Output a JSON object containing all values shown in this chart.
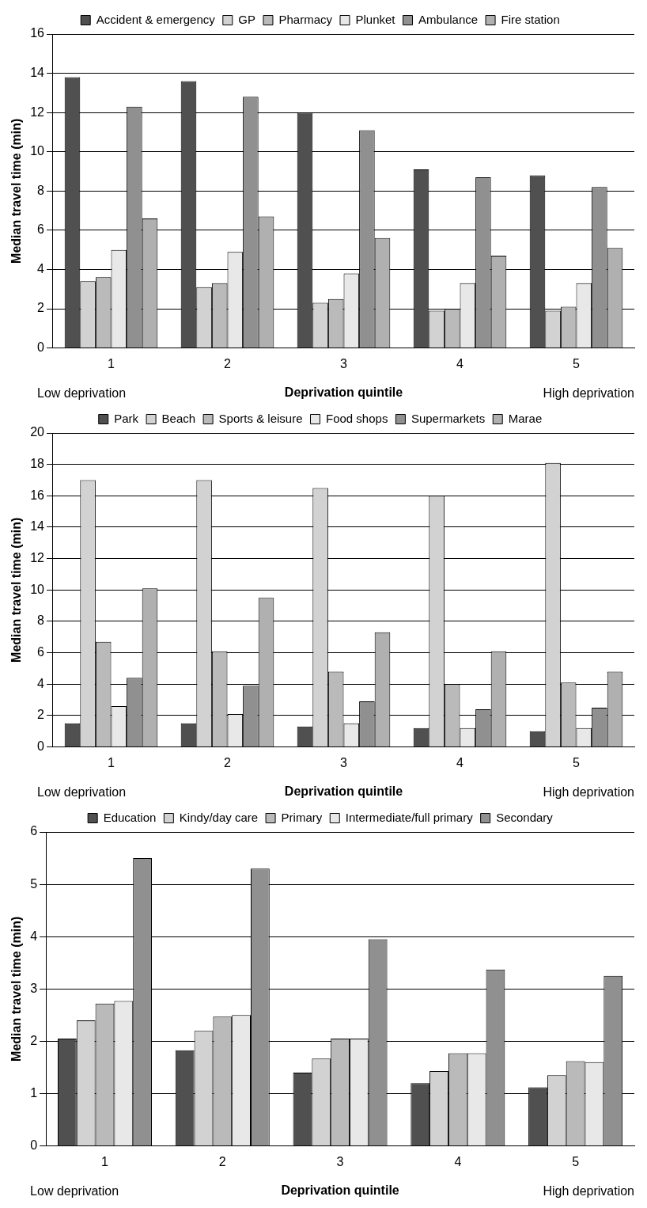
{
  "chart_data": [
    {
      "type": "bar",
      "xlabel": "Deprivation quintile",
      "ylabel": "Median travel time (min)",
      "categories": [
        "1",
        "2",
        "3",
        "4",
        "5"
      ],
      "ylim": [
        0,
        16
      ],
      "yticks": [
        0,
        2,
        4,
        6,
        8,
        10,
        12,
        14,
        16
      ],
      "grid": "y",
      "legend": "top",
      "annotations": [
        "Low deprivation",
        "High deprivation"
      ],
      "series": [
        {
          "name": "Accident & emergency",
          "color": "#505050",
          "values": [
            13.8,
            13.6,
            12.0,
            9.1,
            8.8
          ]
        },
        {
          "name": "GP",
          "color": "#d2d2d2",
          "values": [
            3.4,
            3.1,
            2.3,
            1.9,
            1.9
          ]
        },
        {
          "name": "Pharmacy",
          "color": "#bababa",
          "values": [
            3.6,
            3.3,
            2.5,
            2.0,
            2.1
          ]
        },
        {
          "name": "Plunket",
          "color": "#e8e8e8",
          "values": [
            5.0,
            4.9,
            3.8,
            3.3,
            3.3
          ]
        },
        {
          "name": "Ambulance",
          "color": "#909090",
          "values": [
            12.3,
            12.8,
            11.1,
            8.7,
            8.2
          ]
        },
        {
          "name": "Fire station",
          "color": "#b0b0b0",
          "values": [
            6.6,
            6.7,
            5.6,
            4.7,
            5.1
          ]
        }
      ]
    },
    {
      "type": "bar",
      "xlabel": "Deprivation quintile",
      "ylabel": "Median travel time (min)",
      "categories": [
        "1",
        "2",
        "3",
        "4",
        "5"
      ],
      "ylim": [
        0,
        20
      ],
      "yticks": [
        0,
        2,
        4,
        6,
        8,
        10,
        12,
        14,
        16,
        18,
        20
      ],
      "grid": "y",
      "legend": "top",
      "annotations": [
        "Low deprivation",
        "High deprivation"
      ],
      "series": [
        {
          "name": "Park",
          "color": "#505050",
          "values": [
            1.5,
            1.5,
            1.3,
            1.2,
            1.0
          ]
        },
        {
          "name": "Beach",
          "color": "#d2d2d2",
          "values": [
            17.0,
            17.0,
            16.5,
            16.0,
            18.1
          ]
        },
        {
          "name": "Sports & leisure",
          "color": "#bababa",
          "values": [
            6.7,
            6.1,
            4.8,
            4.0,
            4.1
          ]
        },
        {
          "name": "Food shops",
          "color": "#e8e8e8",
          "values": [
            2.6,
            2.1,
            1.5,
            1.2,
            1.2
          ]
        },
        {
          "name": "Supermarkets",
          "color": "#909090",
          "values": [
            4.4,
            3.9,
            2.9,
            2.4,
            2.5
          ]
        },
        {
          "name": "Marae",
          "color": "#b0b0b0",
          "values": [
            10.1,
            9.5,
            7.3,
            6.1,
            4.8
          ]
        }
      ]
    },
    {
      "type": "bar",
      "xlabel": "Deprivation quintile",
      "ylabel": "Median travel time (min)",
      "categories": [
        "1",
        "2",
        "3",
        "4",
        "5"
      ],
      "ylim": [
        0,
        6
      ],
      "yticks": [
        0,
        1,
        2,
        3,
        4,
        5,
        6
      ],
      "grid": "y",
      "legend": "top",
      "annotations": [
        "Low deprivation",
        "High deprivation"
      ],
      "series": [
        {
          "name": "Education",
          "color": "#505050",
          "values": [
            2.05,
            1.83,
            1.4,
            1.2,
            1.12
          ]
        },
        {
          "name": "Kindy/day care",
          "color": "#d2d2d2",
          "values": [
            2.4,
            2.2,
            1.67,
            1.43,
            1.35
          ]
        },
        {
          "name": "Primary",
          "color": "#bababa",
          "values": [
            2.72,
            2.47,
            2.05,
            1.77,
            1.62
          ]
        },
        {
          "name": "Intermediate/full primary",
          "color": "#e8e8e8",
          "values": [
            2.77,
            2.5,
            2.05,
            1.77,
            1.6
          ]
        },
        {
          "name": "Secondary",
          "color": "#909090",
          "values": [
            5.5,
            5.3,
            3.95,
            3.37,
            3.25
          ]
        }
      ]
    }
  ]
}
